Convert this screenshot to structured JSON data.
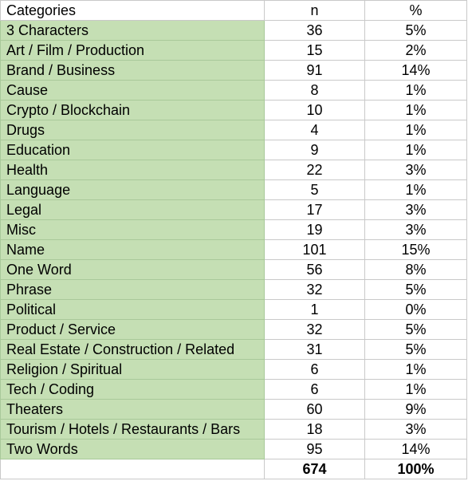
{
  "header": {
    "category": "Categories",
    "n": "n",
    "pct": "%"
  },
  "rows": [
    {
      "category": "3 Characters",
      "n": "36",
      "pct": "5%"
    },
    {
      "category": "Art / Film / Production",
      "n": "15",
      "pct": "2%"
    },
    {
      "category": "Brand / Business",
      "n": "91",
      "pct": "14%"
    },
    {
      "category": "Cause",
      "n": "8",
      "pct": "1%"
    },
    {
      "category": "Crypto / Blockchain",
      "n": "10",
      "pct": "1%"
    },
    {
      "category": "Drugs",
      "n": "4",
      "pct": "1%"
    },
    {
      "category": "Education",
      "n": "9",
      "pct": "1%"
    },
    {
      "category": "Health",
      "n": "22",
      "pct": "3%"
    },
    {
      "category": "Language",
      "n": "5",
      "pct": "1%"
    },
    {
      "category": "Legal",
      "n": "17",
      "pct": "3%"
    },
    {
      "category": "Misc",
      "n": "19",
      "pct": "3%"
    },
    {
      "category": "Name",
      "n": "101",
      "pct": "15%"
    },
    {
      "category": "One Word",
      "n": "56",
      "pct": "8%"
    },
    {
      "category": "Phrase",
      "n": "32",
      "pct": "5%"
    },
    {
      "category": "Political",
      "n": "1",
      "pct": "0%"
    },
    {
      "category": "Product / Service",
      "n": "32",
      "pct": "5%"
    },
    {
      "category": "Real Estate / Construction / Related",
      "n": "31",
      "pct": "5%"
    },
    {
      "category": "Religion / Spiritual",
      "n": "6",
      "pct": "1%"
    },
    {
      "category": "Tech / Coding",
      "n": "6",
      "pct": "1%"
    },
    {
      "category": "Theaters",
      "n": "60",
      "pct": "9%"
    },
    {
      "category": "Tourism / Hotels / Restaurants / Bars",
      "n": "18",
      "pct": "3%"
    },
    {
      "category": "Two Words",
      "n": "95",
      "pct": "14%"
    }
  ],
  "total": {
    "category": "",
    "n": "674",
    "pct": "100%"
  },
  "colors": {
    "category_fill": "#c5dfb4",
    "grid": "#c9c9c9"
  }
}
